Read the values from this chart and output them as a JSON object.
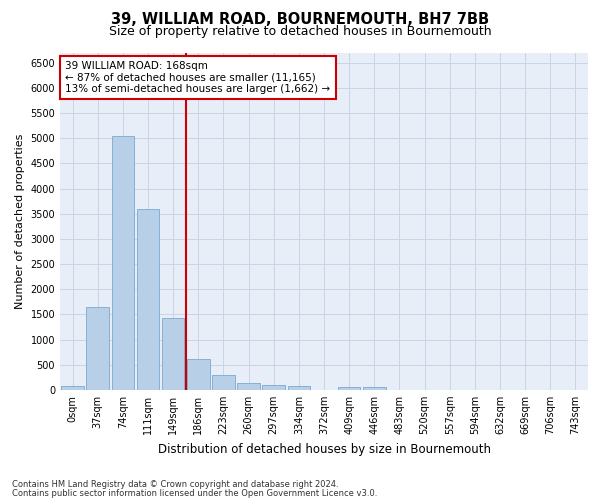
{
  "title": "39, WILLIAM ROAD, BOURNEMOUTH, BH7 7BB",
  "subtitle": "Size of property relative to detached houses in Bournemouth",
  "xlabel": "Distribution of detached houses by size in Bournemouth",
  "ylabel": "Number of detached properties",
  "footnote1": "Contains HM Land Registry data © Crown copyright and database right 2024.",
  "footnote2": "Contains public sector information licensed under the Open Government Licence v3.0.",
  "categories": [
    "0sqm",
    "37sqm",
    "74sqm",
    "111sqm",
    "149sqm",
    "186sqm",
    "223sqm",
    "260sqm",
    "297sqm",
    "334sqm",
    "372sqm",
    "409sqm",
    "446sqm",
    "483sqm",
    "520sqm",
    "557sqm",
    "594sqm",
    "632sqm",
    "669sqm",
    "706sqm",
    "743sqm"
  ],
  "values": [
    75,
    1650,
    5050,
    3600,
    1420,
    620,
    295,
    145,
    100,
    75,
    0,
    65,
    65,
    0,
    0,
    0,
    0,
    0,
    0,
    0,
    0
  ],
  "bar_color": "#b8cfe8",
  "bar_edge_color": "#7aaad0",
  "vline_color": "#cc0000",
  "annotation_box_text": "39 WILLIAM ROAD: 168sqm\n← 87% of detached houses are smaller (11,165)\n13% of semi-detached houses are larger (1,662) →",
  "annotation_box_color": "#cc0000",
  "annotation_box_bg": "#ffffff",
  "ylim": [
    0,
    6700
  ],
  "yticks": [
    0,
    500,
    1000,
    1500,
    2000,
    2500,
    3000,
    3500,
    4000,
    4500,
    5000,
    5500,
    6000,
    6500
  ],
  "grid_color": "#c8d4e8",
  "bg_color": "#e8eef8",
  "title_fontsize": 10.5,
  "subtitle_fontsize": 9,
  "tick_fontsize": 7,
  "ylabel_fontsize": 8,
  "xlabel_fontsize": 8.5,
  "annot_fontsize": 7.5,
  "footnote_fontsize": 6
}
